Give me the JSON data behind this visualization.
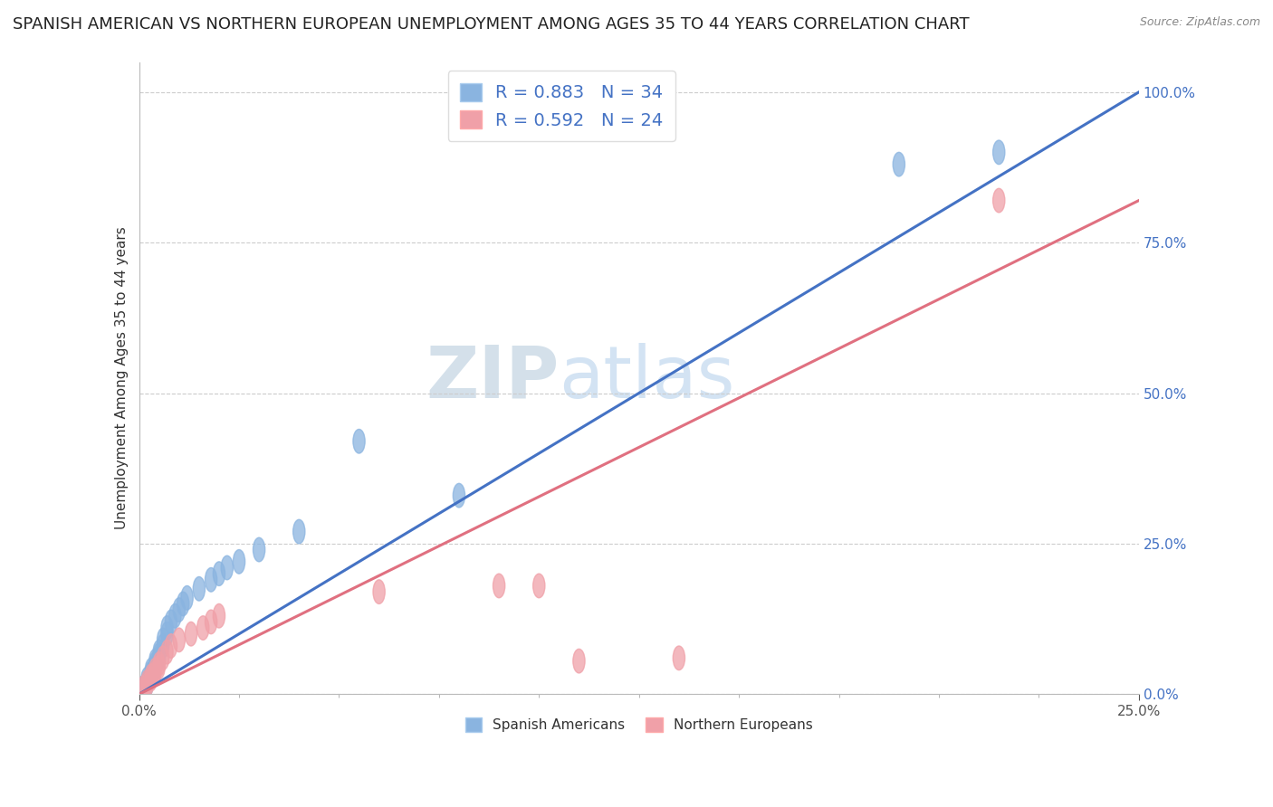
{
  "title": "SPANISH AMERICAN VS NORTHERN EUROPEAN UNEMPLOYMENT AMONG AGES 35 TO 44 YEARS CORRELATION CHART",
  "source": "Source: ZipAtlas.com",
  "ylabel": "Unemployment Among Ages 35 to 44 years",
  "xlim": [
    0.0,
    0.25
  ],
  "ylim": [
    0.0,
    1.05
  ],
  "blue_color": "#8ab4e0",
  "pink_color": "#f0a0a8",
  "blue_line_color": "#4472c4",
  "pink_line_color": "#e07080",
  "R_blue": 0.883,
  "N_blue": 34,
  "R_pink": 0.592,
  "N_pink": 24,
  "legend_label_blue": "Spanish Americans",
  "legend_label_pink": "Northern Europeans",
  "watermark_zip": "ZIP",
  "watermark_atlas": "atlas",
  "grid_color": "#cccccc",
  "bg_color": "#ffffff",
  "title_fontsize": 13,
  "axis_label_fontsize": 11,
  "tick_fontsize": 11,
  "legend_fontsize": 14,
  "blue_scatter_x": [
    0.001,
    0.001,
    0.002,
    0.002,
    0.002,
    0.003,
    0.003,
    0.003,
    0.004,
    0.004,
    0.004,
    0.005,
    0.005,
    0.005,
    0.006,
    0.006,
    0.007,
    0.007,
    0.008,
    0.009,
    0.01,
    0.011,
    0.012,
    0.015,
    0.018,
    0.02,
    0.022,
    0.025,
    0.03,
    0.04,
    0.055,
    0.08,
    0.19,
    0.215
  ],
  "blue_scatter_y": [
    0.005,
    0.01,
    0.015,
    0.02,
    0.025,
    0.03,
    0.035,
    0.04,
    0.045,
    0.05,
    0.055,
    0.06,
    0.065,
    0.07,
    0.08,
    0.09,
    0.1,
    0.11,
    0.12,
    0.13,
    0.14,
    0.15,
    0.16,
    0.175,
    0.19,
    0.2,
    0.21,
    0.22,
    0.24,
    0.27,
    0.42,
    0.33,
    0.88,
    0.9
  ],
  "pink_scatter_x": [
    0.001,
    0.001,
    0.002,
    0.002,
    0.003,
    0.003,
    0.004,
    0.004,
    0.005,
    0.005,
    0.006,
    0.007,
    0.008,
    0.01,
    0.013,
    0.016,
    0.018,
    0.02,
    0.06,
    0.09,
    0.1,
    0.11,
    0.135,
    0.215
  ],
  "pink_scatter_y": [
    0.005,
    0.01,
    0.015,
    0.02,
    0.025,
    0.03,
    0.035,
    0.04,
    0.045,
    0.05,
    0.06,
    0.07,
    0.08,
    0.09,
    0.1,
    0.11,
    0.12,
    0.13,
    0.17,
    0.18,
    0.18,
    0.055,
    0.06,
    0.82
  ],
  "blue_line_x": [
    0.0,
    0.25
  ],
  "blue_line_y": [
    0.0,
    1.0
  ],
  "pink_line_x": [
    0.0,
    0.25
  ],
  "pink_line_y": [
    0.0,
    0.82
  ]
}
